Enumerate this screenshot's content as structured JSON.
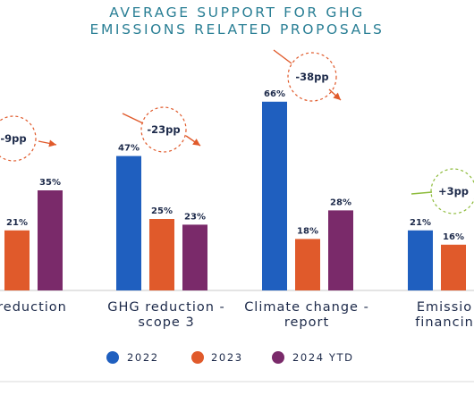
{
  "chart_data": {
    "type": "bar",
    "title": [
      "AVERAGE SUPPORT FOR GHG",
      "EMISSIONS RELATED PROPOSALS"
    ],
    "categories": [
      [
        "reduction"
      ],
      [
        "GHG reduction -",
        "scope 3"
      ],
      [
        "Climate change -",
        "report"
      ],
      [
        "Emissio",
        "financin"
      ]
    ],
    "series": [
      {
        "name": "2022",
        "color": "#1f5fbf",
        "values": [
          null,
          47,
          66,
          21
        ]
      },
      {
        "name": "2023",
        "color": "#e05a2b",
        "values": [
          21,
          25,
          18,
          16
        ]
      },
      {
        "name": "2024 YTD",
        "color": "#7a2a6a",
        "values": [
          35,
          23,
          28,
          null
        ]
      }
    ],
    "value_suffix": "%",
    "ylim": [
      0,
      70
    ],
    "grid": false,
    "legend_position": "bottom",
    "annotations": [
      {
        "category_index": 0,
        "text": "-9pp",
        "color": "#e05a2b",
        "trend": "down"
      },
      {
        "category_index": 1,
        "text": "-23pp",
        "color": "#e05a2b",
        "trend": "down"
      },
      {
        "category_index": 2,
        "text": "-38pp",
        "color": "#e05a2b",
        "trend": "down"
      },
      {
        "category_index": 3,
        "text": "+3pp",
        "color": "#8dbb3b",
        "trend": "flat"
      }
    ],
    "colors": {
      "title": "#2a7f95",
      "labels": "#1d2a4a",
      "axis": "#c8c8c8"
    }
  }
}
